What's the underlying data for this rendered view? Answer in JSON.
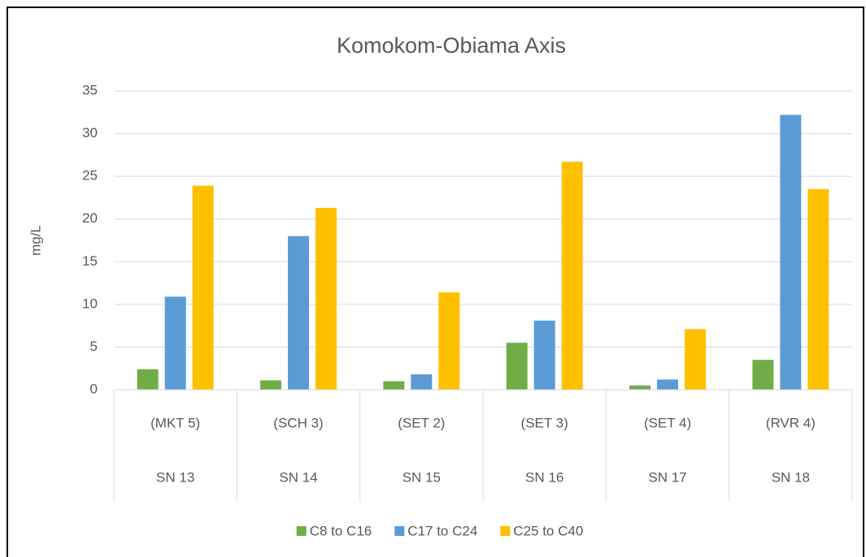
{
  "chart_data": {
    "type": "bar",
    "title": "Komokom-Obiama Axis",
    "y_label": "mg/L",
    "categories": [
      "(MKT 5)",
      "(SCH 3)",
      "(SET 2)",
      "(SET 3)",
      "(SET 4)",
      "(RVR 4)"
    ],
    "category_groups": [
      "SN 13",
      "SN 14",
      "SN 15",
      "SN 16",
      "SN 17",
      "SN 18"
    ],
    "series": [
      {
        "name": "C8 to C16",
        "color": "#70ad47",
        "values": [
          2.4,
          1.1,
          1.0,
          5.5,
          0.5,
          3.5
        ]
      },
      {
        "name": "C17 to C24",
        "color": "#5b9bd5",
        "values": [
          10.9,
          18.0,
          1.8,
          8.1,
          1.2,
          32.2
        ]
      },
      {
        "name": "C25 to C40",
        "color": "#ffc000",
        "values": [
          23.9,
          21.3,
          11.4,
          26.7,
          7.1,
          23.5
        ]
      }
    ],
    "ylim": [
      0,
      35
    ],
    "yticks": [
      0,
      5,
      10,
      15,
      20,
      25,
      30,
      35
    ],
    "grid": true,
    "legend": "bottom"
  }
}
